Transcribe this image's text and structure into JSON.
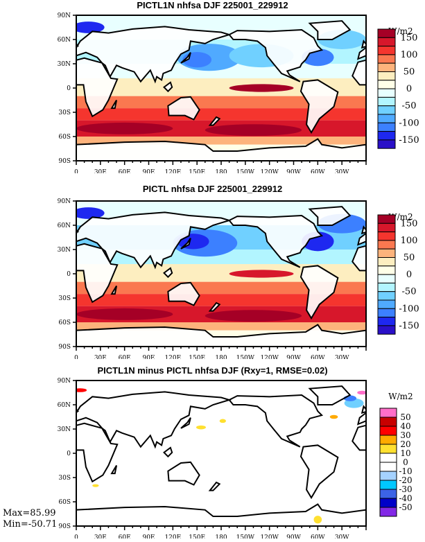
{
  "panels": [
    {
      "title": "PICTL1N nhfsa DJF 225001_229912",
      "units": "W/m2",
      "colorbar": "main"
    },
    {
      "title": "PICTL nhfsa DJF 225001_229912",
      "units": "W/m2",
      "colorbar": "main"
    },
    {
      "title": "PICTL1N minus PICTL nhfsa DJF (Rxy=1, RMSE=0.02)",
      "units": "W/m2",
      "colorbar": "diff"
    }
  ],
  "lat_ticks": [
    "90N",
    "60N",
    "30N",
    "0",
    "30S",
    "60S",
    "90S"
  ],
  "lon_ticks": [
    "0",
    "30E",
    "60E",
    "90E",
    "120E",
    "150E",
    "180",
    "150W",
    "120W",
    "90W",
    "60W",
    "30W"
  ],
  "colorbars": {
    "main": {
      "colors": [
        "#a50026",
        "#d7172b",
        "#f5352e",
        "#fa7850",
        "#fdb37c",
        "#fdeec0",
        "#ffffe8",
        "#e8ffff",
        "#b2f5ff",
        "#70d0ff",
        "#50aaff",
        "#3c80ff",
        "#1e28f0",
        "#2a10c8"
      ],
      "labels": [
        "150",
        "100",
        "50",
        "0",
        "-50",
        "-100",
        "-150"
      ]
    },
    "diff": {
      "colors": [
        "#ff6ec8",
        "#c80000",
        "#ff0000",
        "#ffaa00",
        "#ffe030",
        "#ffffff",
        "#ffffff",
        "#a5d2ff",
        "#00c8ff",
        "#3c64e6",
        "#0000c8",
        "#8228e6"
      ],
      "labels": [
        "50",
        "40",
        "30",
        "20",
        "10",
        "0",
        "-10",
        "-20",
        "-30",
        "-40",
        "-50"
      ]
    }
  },
  "stats": {
    "max": "Max=85.99",
    "min": "Min=-50.71"
  },
  "chart_data": {
    "type": "heatmap",
    "variable": "nhfsa",
    "season": "DJF",
    "units": "W/m2",
    "x_range": [
      0,
      360
    ],
    "y_range": [
      -90,
      90
    ],
    "main_levels": [
      -150,
      -125,
      -100,
      -75,
      -50,
      -25,
      0,
      25,
      50,
      75,
      100,
      125,
      150
    ],
    "diff_levels": [
      -50,
      -40,
      -30,
      -20,
      -10,
      0,
      10,
      20,
      30,
      40,
      50
    ],
    "diff_max": 85.99,
    "diff_min": -50.71,
    "Rxy": 1,
    "RMSE": 0.02
  }
}
